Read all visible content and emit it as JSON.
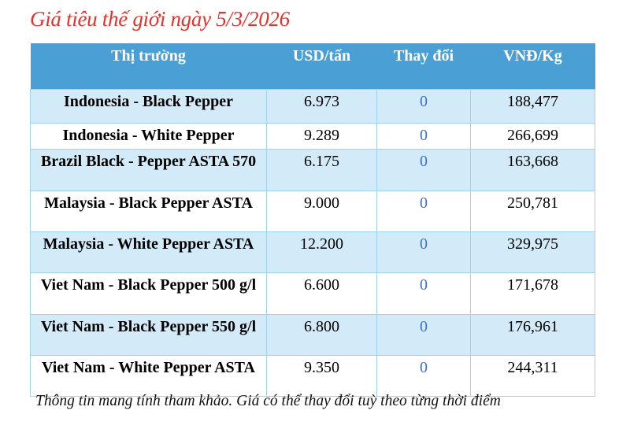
{
  "title": "Giá tiêu thế giới ngày 5/3/2026",
  "columns": [
    "Thị trường",
    "USD/tấn",
    "Thay đổi",
    "VNĐ/Kg"
  ],
  "rows": [
    {
      "market": "Indonesia - Black Pepper",
      "usd": "6.973",
      "change": "0",
      "vnd": "188,477"
    },
    {
      "market": "Indonesia - White Pepper",
      "usd": "9.289",
      "change": "0",
      "vnd": "266,699"
    },
    {
      "market": "Brazil Black - Pepper ASTA 570",
      "usd": "6.175",
      "change": "0",
      "vnd": "163,668"
    },
    {
      "market": "Malaysia - Black Pepper ASTA",
      "usd": "9.000",
      "change": "0",
      "vnd": "250,781"
    },
    {
      "market": "Malaysia - White Pepper ASTA",
      "usd": "12.200",
      "change": "0",
      "vnd": "329,975"
    },
    {
      "market": "Viet Nam - Black Pepper 500 g/l",
      "usd": "6.600",
      "change": "0",
      "vnd": "171,678"
    },
    {
      "market": "Viet Nam - Black Pepper 550 g/l",
      "usd": "6.800",
      "change": "0",
      "vnd": "176,961"
    },
    {
      "market": "Viet Nam - White Pepper ASTA",
      "usd": "9.350",
      "change": "0",
      "vnd": "244,311"
    }
  ],
  "note": "Thông tin mang tính tham khảo. Giá có thể thay đổi tuỳ theo từng thời điểm",
  "colors": {
    "title": "#e8302a",
    "header": "#4a9fd4",
    "row_alt": "#d3ebf8",
    "change": "#3c6fc8"
  }
}
